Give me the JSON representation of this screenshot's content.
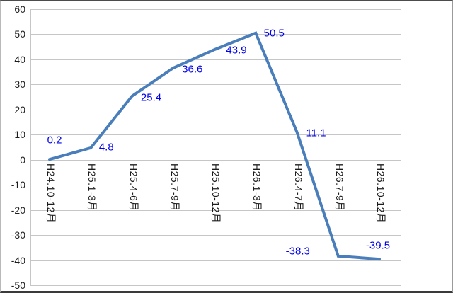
{
  "chart_data": {
    "type": "line",
    "categories": [
      "H24.10-12月",
      "H25.1-3月",
      "H25.4-6月",
      "H25.7-9月",
      "H25.10-12月",
      "H26.1-3月",
      "H26.4-7月",
      "H26.7-9月",
      "H26.10-12月"
    ],
    "values": [
      0.2,
      4.8,
      25.4,
      36.6,
      43.9,
      50.5,
      11.1,
      -38.3,
      -39.5
    ],
    "data_labels": [
      "0.2",
      "4.8",
      "25.4",
      "36.6",
      "43.9",
      "50.5",
      "11.1",
      "-38.3",
      "-39.5"
    ],
    "title": "",
    "xlabel": "",
    "ylabel": "",
    "ylim": [
      -50,
      60
    ],
    "ytick_step": 10,
    "ytick_labels": [
      "60",
      "50",
      "40",
      "30",
      "20",
      "10",
      "0",
      "-10",
      "-20",
      "-30",
      "-40",
      "-50"
    ],
    "grid": "horizontal",
    "legend": "none",
    "colors": {
      "line": "#4A7EBB",
      "data_label": "#0000EE",
      "axis_text": "#1c1c1c",
      "gridline": "#c6c6c6"
    }
  }
}
